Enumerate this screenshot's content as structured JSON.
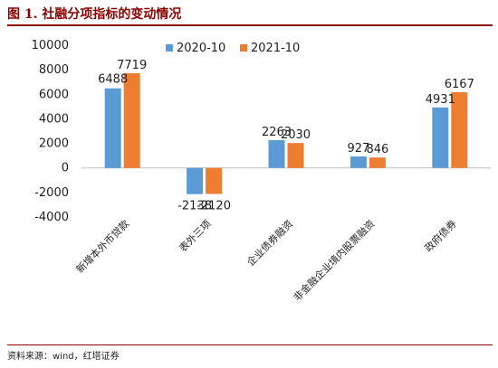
{
  "figure": {
    "title": "图 1. 社融分项指标的变动情况",
    "source": "资料来源：wind，红塔证券"
  },
  "colors": {
    "title": "#8c0000",
    "rule": "#8c0000",
    "series_2020": "#5b9bd5",
    "series_2021": "#ed7d31",
    "axis": "#bfbfbf",
    "text": "#1f1f1f"
  },
  "chart_data": {
    "type": "bar",
    "categories": [
      "新增本外币贷款",
      "表外三项",
      "企业债券融资",
      "非金融企业境内股票融资",
      "政府债券"
    ],
    "series": [
      {
        "name": "2020-10",
        "values": [
          6488,
          -2138,
          2263,
          927,
          4931
        ]
      },
      {
        "name": "2021-10",
        "values": [
          7719,
          -2120,
          2030,
          846,
          6167
        ]
      }
    ],
    "y_ticks": [
      10000,
      8000,
      6000,
      4000,
      2000,
      0,
      -2000,
      -4000
    ],
    "ylim": [
      -4000,
      10000
    ],
    "grid": false,
    "legend_position": "top",
    "data_labels": true
  }
}
